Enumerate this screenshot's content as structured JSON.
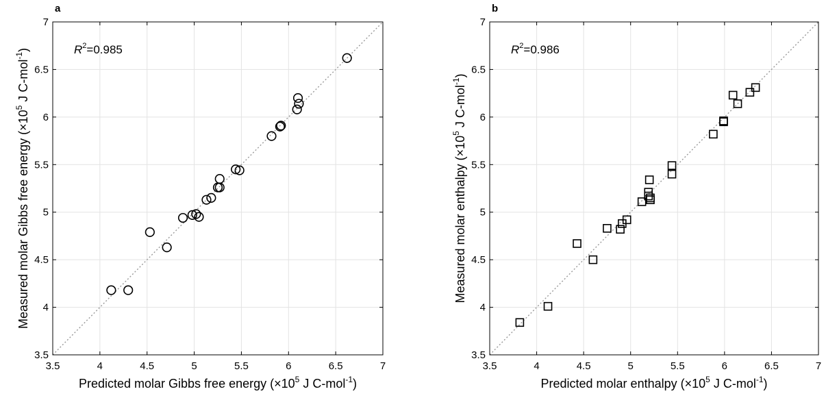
{
  "chart_data": [
    {
      "panel": "a",
      "type": "scatter",
      "marker": "circle",
      "xlabel_main": "Predicted molar Gibbs free energy (×10",
      "xlabel_exp": "5",
      "xlabel_unit": " J C-mol",
      "xlabel_unit_exp": "-1",
      "xlabel_close": ")",
      "ylabel_main": "Measured molar Gibbs free energy (×10",
      "ylabel_exp": "5",
      "ylabel_unit": " J C-mol",
      "ylabel_unit_exp": "-1",
      "ylabel_close": ")",
      "r2_label": "R",
      "r2_exp": "2",
      "r2_value": "=0.985",
      "xlim": [
        3.5,
        7
      ],
      "ylim": [
        3.5,
        7
      ],
      "xticks": [
        "3.5",
        "4",
        "4.5",
        "5",
        "5.5",
        "6",
        "6.5",
        "7"
      ],
      "yticks": [
        "3.5",
        "4",
        "4.5",
        "5",
        "5.5",
        "6",
        "6.5",
        "7"
      ],
      "grid": true,
      "identity_line": true,
      "points": [
        [
          4.12,
          4.18
        ],
        [
          4.3,
          4.18
        ],
        [
          4.53,
          4.79
        ],
        [
          4.71,
          4.63
        ],
        [
          4.88,
          4.94
        ],
        [
          4.98,
          4.97
        ],
        [
          5.02,
          4.98
        ],
        [
          5.05,
          4.95
        ],
        [
          5.13,
          5.13
        ],
        [
          5.18,
          5.15
        ],
        [
          5.25,
          5.26
        ],
        [
          5.27,
          5.26
        ],
        [
          5.27,
          5.35
        ],
        [
          5.44,
          5.45
        ],
        [
          5.48,
          5.44
        ],
        [
          5.82,
          5.8
        ],
        [
          5.91,
          5.9
        ],
        [
          5.92,
          5.91
        ],
        [
          6.09,
          6.08
        ],
        [
          6.1,
          6.2
        ],
        [
          6.11,
          6.14
        ],
        [
          6.62,
          6.62
        ]
      ]
    },
    {
      "panel": "b",
      "type": "scatter",
      "marker": "square",
      "xlabel_main": "Predicted molar enthalpy (×10",
      "xlabel_exp": "5",
      "xlabel_unit": " J C-mol",
      "xlabel_unit_exp": "-1",
      "xlabel_close": ")",
      "ylabel_main": "Measured molar enthalpy (×10",
      "ylabel_exp": "5",
      "ylabel_unit": " J C-mol",
      "ylabel_unit_exp": "-1",
      "ylabel_close": ")",
      "r2_label": "R",
      "r2_exp": "2",
      "r2_value": "=0.986",
      "xlim": [
        3.5,
        7
      ],
      "ylim": [
        3.5,
        7
      ],
      "xticks": [
        "3.5",
        "4",
        "4.5",
        "5",
        "5.5",
        "6",
        "6.5",
        "7"
      ],
      "yticks": [
        "3.5",
        "4",
        "4.5",
        "5",
        "5.5",
        "6",
        "6.5",
        "7"
      ],
      "grid": true,
      "identity_line": true,
      "points": [
        [
          3.82,
          3.84
        ],
        [
          4.12,
          4.01
        ],
        [
          4.43,
          4.67
        ],
        [
          4.6,
          4.5
        ],
        [
          4.75,
          4.83
        ],
        [
          4.89,
          4.82
        ],
        [
          4.91,
          4.88
        ],
        [
          4.96,
          4.92
        ],
        [
          5.12,
          5.11
        ],
        [
          5.19,
          5.17
        ],
        [
          5.19,
          5.21
        ],
        [
          5.2,
          5.34
        ],
        [
          5.21,
          5.15
        ],
        [
          5.21,
          5.13
        ],
        [
          5.44,
          5.49
        ],
        [
          5.44,
          5.4
        ],
        [
          5.88,
          5.82
        ],
        [
          5.99,
          5.95
        ],
        [
          5.99,
          5.96
        ],
        [
          6.09,
          6.23
        ],
        [
          6.14,
          6.14
        ],
        [
          6.27,
          6.26
        ],
        [
          6.33,
          6.31
        ]
      ]
    }
  ]
}
